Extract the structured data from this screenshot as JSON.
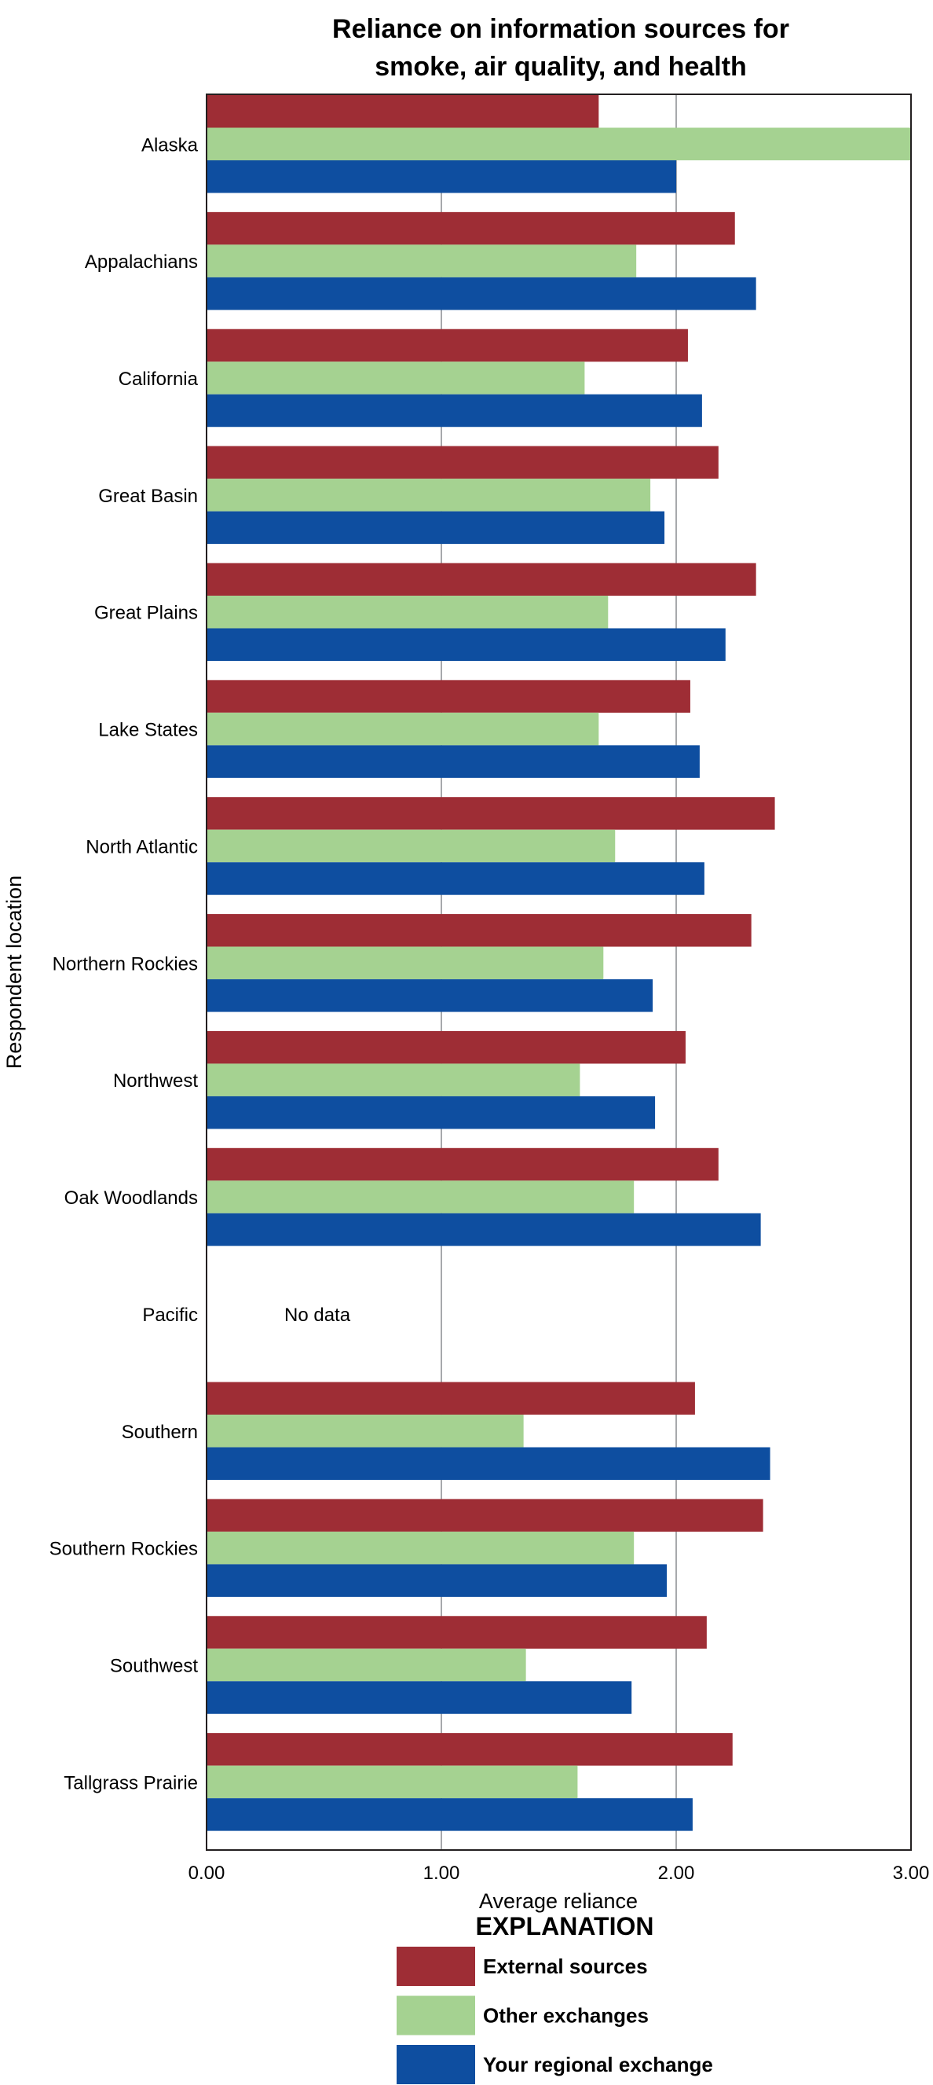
{
  "chart_data": {
    "type": "bar",
    "orientation": "horizontal",
    "title": "Reliance on information sources for smoke, air quality, and health",
    "title_lines": [
      "Reliance on information sources for",
      "smoke, air quality, and health"
    ],
    "xlabel": "Average reliance",
    "ylabel": "Respondent location",
    "xlim": [
      0,
      3
    ],
    "xticks": [
      0,
      1,
      2,
      3
    ],
    "xtick_labels": [
      "0.00",
      "1.00",
      "2.00",
      "3.00"
    ],
    "grid": "vertical gridlines at 1.00 and 2.00",
    "categories": [
      "Alaska",
      "Appalachians",
      "California",
      "Great Basin",
      "Great Plains",
      "Lake States",
      "North Atlantic",
      "Northern Rockies",
      "Northwest",
      "Oak Woodlands",
      "Pacific",
      "Southern",
      "Southern Rockies",
      "Southwest",
      "Tallgrass Prairie"
    ],
    "series": [
      {
        "name": "External sources",
        "color": "#9E2D35",
        "values": [
          1.67,
          2.25,
          2.05,
          2.18,
          2.34,
          2.06,
          2.42,
          2.32,
          2.04,
          2.18,
          null,
          2.08,
          2.37,
          2.13,
          2.24
        ]
      },
      {
        "name": "Other exchanges",
        "color": "#A5D291",
        "values": [
          3.0,
          1.83,
          1.61,
          1.89,
          1.71,
          1.67,
          1.74,
          1.69,
          1.59,
          1.82,
          null,
          1.35,
          1.82,
          1.36,
          1.58
        ]
      },
      {
        "name": "Your regional exchange",
        "color": "#0E4EA0",
        "values": [
          2.0,
          2.34,
          2.11,
          1.95,
          2.21,
          2.1,
          2.12,
          1.9,
          1.91,
          2.36,
          null,
          2.4,
          1.96,
          1.81,
          2.07
        ]
      }
    ],
    "annotations": [
      {
        "category": "Pacific",
        "text": "No data"
      }
    ],
    "legend": {
      "title": "EXPLANATION",
      "placement": "bottom-center",
      "entries": [
        "External sources",
        "Other exchanges",
        "Your regional exchange"
      ]
    }
  }
}
